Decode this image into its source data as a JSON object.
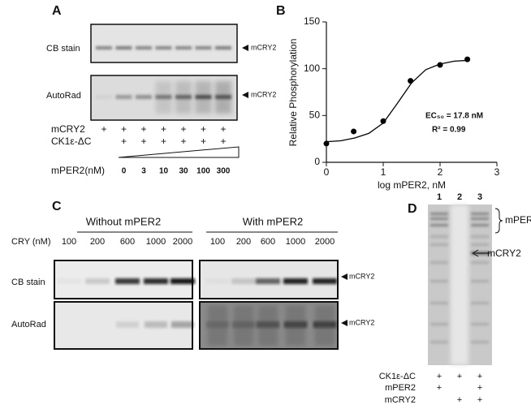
{
  "panel_a": {
    "label": "A",
    "rows": [
      "CB stain",
      "AutoRad"
    ],
    "band_labels": [
      "mCRY2",
      "mCRY2"
    ],
    "conditions": [
      {
        "name": "mCRY2",
        "lanes": [
          "+",
          "+",
          "+",
          "+",
          "+",
          "+",
          "+"
        ]
      },
      {
        "name": "CK1ε-ΔC",
        "lanes": [
          null,
          "+",
          "+",
          "+",
          "+",
          "+",
          "+"
        ]
      },
      {
        "name": "mPER2(nM)",
        "lanes": [
          null,
          0,
          3,
          10,
          30,
          100,
          300
        ]
      }
    ]
  },
  "chart_data": {
    "type": "scatter",
    "panel_label": "B",
    "ylabel": "Relative Phosphorylation",
    "xlabel": "log mPER2, nM",
    "annotations": [
      "EC₅₀ = 17.8 nM",
      "R² = 0.99"
    ],
    "xlim": [
      0,
      3
    ],
    "ylim": [
      0,
      150
    ],
    "xticks": [
      0,
      1,
      2,
      3
    ],
    "yticks": [
      0,
      50,
      100,
      150
    ],
    "series": [
      {
        "type": "scatter",
        "color": "#000000",
        "x": [
          0,
          0.48,
          1,
          1.48,
          2,
          2.48
        ],
        "values": [
          20,
          33,
          44,
          87,
          104,
          110
        ]
      },
      {
        "type": "line",
        "color": "#000000",
        "x": [
          0,
          0.25,
          0.5,
          0.75,
          1,
          1.25,
          1.5,
          1.75,
          2,
          2.25,
          2.5
        ],
        "values": [
          22,
          23,
          26,
          31,
          42,
          63,
          85,
          99,
          105,
          108,
          109
        ]
      }
    ]
  },
  "panel_c": {
    "label": "C",
    "groups": [
      "Without mPER2",
      "With mPER2"
    ],
    "lane_title": "CRY (nM)",
    "lanes": [
      [
        100,
        200,
        600,
        1000,
        2000
      ],
      [
        100,
        200,
        600,
        1000,
        2000
      ]
    ],
    "rows": [
      "CB stain",
      "AutoRad"
    ],
    "band_labels": [
      "mCRY2",
      "mCRY2"
    ]
  },
  "panel_d": {
    "label": "D",
    "lane_numbers": [
      1,
      2,
      3
    ],
    "band_labels": [
      "mPER2",
      "mCRY2"
    ],
    "conditions": [
      {
        "name": "CK1ε-ΔC",
        "lanes": [
          "+",
          "+",
          "+"
        ]
      },
      {
        "name": "mPER2",
        "lanes": [
          "+",
          null,
          "+"
        ]
      },
      {
        "name": "mCRY2",
        "lanes": [
          null,
          "+",
          "+"
        ]
      }
    ]
  }
}
